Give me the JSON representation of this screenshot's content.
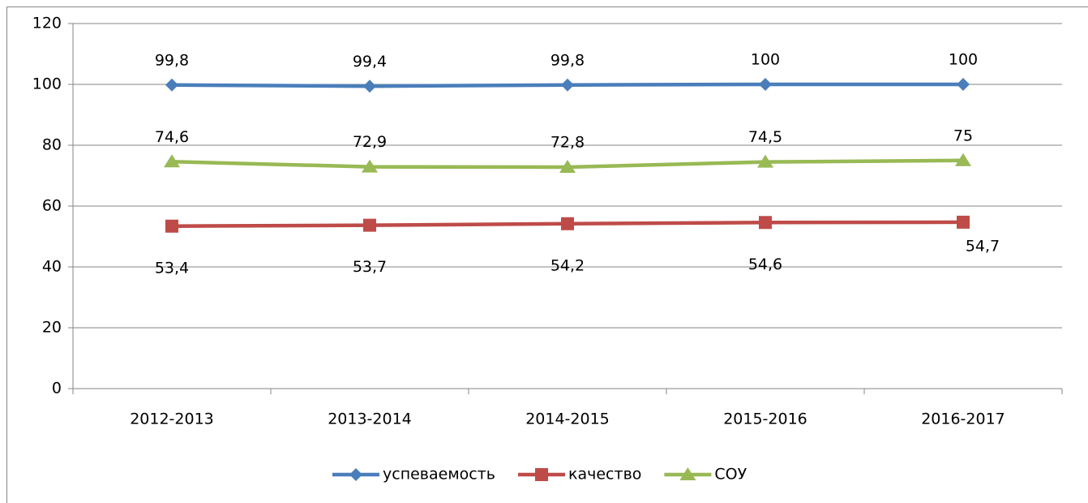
{
  "chart_data": {
    "type": "line",
    "categories": [
      "2012-2013",
      "2013-2014",
      "2014-2015",
      "2015-2016",
      "2016-2017"
    ],
    "series": [
      {
        "name": "успеваемость",
        "color": "#4a7ebb",
        "marker": "diamond",
        "values": [
          99.8,
          99.4,
          99.8,
          100,
          100
        ],
        "value_labels": [
          "99,8",
          "99,4",
          "99,8",
          "100",
          "100"
        ]
      },
      {
        "name": "качество",
        "color": "#be4b48",
        "marker": "square",
        "values": [
          53.4,
          53.7,
          54.2,
          54.6,
          54.7
        ],
        "value_labels": [
          "53,4",
          "53,7",
          "54,2",
          "54,6",
          "54,7"
        ]
      },
      {
        "name": "СОУ",
        "color": "#98b954",
        "marker": "triangle",
        "values": [
          74.6,
          72.9,
          72.8,
          74.5,
          75
        ],
        "value_labels": [
          "74,6",
          "72,9",
          "72,8",
          "74,5",
          "75"
        ]
      }
    ],
    "ylim": [
      0,
      120
    ],
    "yticks": [
      0,
      20,
      40,
      60,
      80,
      100,
      120
    ],
    "grid": true,
    "legend": "bottom"
  }
}
